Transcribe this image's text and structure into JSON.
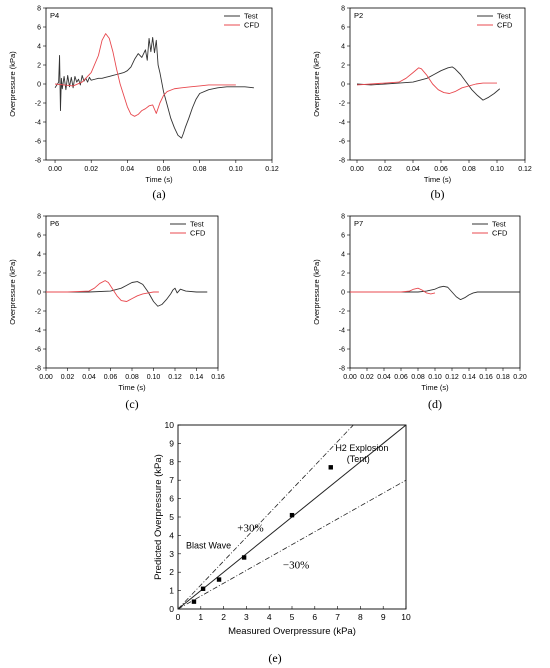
{
  "chart_data": [
    {
      "type": "line",
      "panel_label": "(a)",
      "sensor_label": "P4",
      "xlabel": "Time (s)",
      "ylabel": "Overpressure (kPa)",
      "xlim": [
        -0.005,
        0.12
      ],
      "ylim": [
        -8,
        8
      ],
      "x_ticks": [
        "0.00",
        "0.02",
        "0.04",
        "0.06",
        "0.08",
        "0.10",
        "0.12"
      ],
      "y_ticks": [
        "-8",
        "-6",
        "-4",
        "-2",
        "0",
        "2",
        "4",
        "6",
        "8"
      ],
      "legend": "top-right",
      "series": [
        {
          "name": "Test",
          "color": "#333333",
          "x": [
            0.0,
            0.002,
            0.0025,
            0.003,
            0.0035,
            0.004,
            0.005,
            0.006,
            0.007,
            0.008,
            0.009,
            0.01,
            0.011,
            0.012,
            0.013,
            0.014,
            0.015,
            0.016,
            0.017,
            0.018,
            0.019,
            0.02,
            0.022,
            0.024,
            0.026,
            0.028,
            0.03,
            0.032,
            0.034,
            0.036,
            0.038,
            0.04,
            0.042,
            0.044,
            0.046,
            0.048,
            0.05,
            0.051,
            0.052,
            0.053,
            0.054,
            0.055,
            0.056,
            0.057,
            0.058,
            0.059,
            0.06,
            0.062,
            0.064,
            0.066,
            0.068,
            0.07,
            0.071,
            0.072,
            0.074,
            0.076,
            0.078,
            0.08,
            0.085,
            0.09,
            0.095,
            0.1,
            0.105,
            0.11
          ],
          "y": [
            -0.4,
            0.2,
            3.0,
            -2.8,
            0.6,
            -0.5,
            0.8,
            -0.6,
            0.9,
            -0.3,
            0.7,
            -0.4,
            0.8,
            0.2,
            0.5,
            -0.1,
            0.9,
            0.3,
            0.6,
            0.2,
            0.7,
            0.4,
            0.5,
            0.6,
            0.6,
            0.7,
            0.8,
            0.9,
            1.0,
            1.1,
            1.2,
            1.4,
            1.8,
            2.6,
            3.2,
            2.8,
            3.6,
            2.5,
            4.8,
            3.4,
            4.9,
            3.3,
            4.6,
            2.0,
            1.2,
            0.2,
            -0.8,
            -2.2,
            -3.6,
            -4.6,
            -5.4,
            -5.7,
            -5.2,
            -4.6,
            -3.6,
            -2.5,
            -1.6,
            -1.0,
            -0.6,
            -0.4,
            -0.3,
            -0.3,
            -0.3,
            -0.4
          ]
        },
        {
          "name": "CFD",
          "color": "#e8494f",
          "x": [
            0.0,
            0.005,
            0.01,
            0.015,
            0.02,
            0.024,
            0.026,
            0.028,
            0.03,
            0.032,
            0.034,
            0.036,
            0.038,
            0.04,
            0.042,
            0.044,
            0.046,
            0.048,
            0.05,
            0.052,
            0.054,
            0.056,
            0.058,
            0.06,
            0.062,
            0.066,
            0.07,
            0.075,
            0.08,
            0.085,
            0.09,
            0.095,
            0.1
          ],
          "y": [
            0.0,
            -0.1,
            -0.2,
            0.2,
            1.2,
            3.0,
            4.6,
            5.3,
            4.8,
            3.4,
            1.6,
            0.0,
            -1.2,
            -2.4,
            -3.2,
            -3.4,
            -3.2,
            -2.8,
            -2.6,
            -2.3,
            -2.2,
            -3.1,
            -2.0,
            -1.2,
            -0.8,
            -0.5,
            -0.4,
            -0.3,
            -0.2,
            -0.1,
            -0.1,
            -0.1,
            -0.1
          ]
        }
      ]
    },
    {
      "type": "line",
      "panel_label": "(b)",
      "sensor_label": "P2",
      "xlabel": "Time (s)",
      "ylabel": "Overpressure (kPa)",
      "xlim": [
        -0.005,
        0.12
      ],
      "ylim": [
        -8,
        8
      ],
      "x_ticks": [
        "0.00",
        "0.02",
        "0.04",
        "0.06",
        "0.08",
        "0.10",
        "0.12"
      ],
      "y_ticks": [
        "-8",
        "-6",
        "-4",
        "-2",
        "0",
        "2",
        "4",
        "6",
        "8"
      ],
      "legend": "top-right",
      "series": [
        {
          "name": "Test",
          "color": "#333333",
          "x": [
            0.0,
            0.01,
            0.02,
            0.03,
            0.04,
            0.05,
            0.055,
            0.06,
            0.065,
            0.068,
            0.07,
            0.074,
            0.078,
            0.082,
            0.086,
            0.09,
            0.094,
            0.098,
            0.102
          ],
          "y": [
            0.0,
            -0.1,
            0.0,
            0.1,
            0.2,
            0.6,
            1.0,
            1.4,
            1.7,
            1.8,
            1.6,
            1.0,
            0.2,
            -0.6,
            -1.2,
            -1.7,
            -1.4,
            -1.0,
            -0.5
          ]
        },
        {
          "name": "CFD",
          "color": "#e8494f",
          "x": [
            0.0,
            0.01,
            0.02,
            0.03,
            0.035,
            0.04,
            0.044,
            0.046,
            0.05,
            0.054,
            0.058,
            0.062,
            0.066,
            0.07,
            0.075,
            0.08,
            0.085,
            0.09,
            0.095,
            0.1
          ],
          "y": [
            -0.1,
            0.0,
            0.1,
            0.2,
            0.6,
            1.2,
            1.7,
            1.6,
            0.9,
            0.0,
            -0.6,
            -0.9,
            -1.0,
            -0.8,
            -0.4,
            -0.2,
            0.0,
            0.1,
            0.1,
            0.1
          ]
        }
      ]
    },
    {
      "type": "line",
      "panel_label": "(c)",
      "sensor_label": "P6",
      "xlabel": "Time (s)",
      "ylabel": "Overpressure (kPa)",
      "xlim": [
        0,
        0.16
      ],
      "ylim": [
        -8,
        8
      ],
      "x_ticks": [
        "0.00",
        "0.02",
        "0.04",
        "0.06",
        "0.08",
        "0.10",
        "0.12",
        "0.14",
        "0.16"
      ],
      "y_ticks": [
        "-8",
        "-6",
        "-4",
        "-2",
        "0",
        "2",
        "4",
        "6",
        "8"
      ],
      "legend": "top-right",
      "series": [
        {
          "name": "Test",
          "color": "#333333",
          "x": [
            0.0,
            0.02,
            0.04,
            0.06,
            0.07,
            0.075,
            0.08,
            0.085,
            0.09,
            0.095,
            0.1,
            0.104,
            0.108,
            0.112,
            0.116,
            0.118,
            0.12,
            0.122,
            0.125,
            0.13,
            0.14,
            0.15
          ],
          "y": [
            0.0,
            0.0,
            0.0,
            0.1,
            0.4,
            0.7,
            1.0,
            1.1,
            0.8,
            0.0,
            -1.0,
            -1.5,
            -1.3,
            -0.8,
            -0.2,
            0.2,
            0.4,
            -0.1,
            0.3,
            0.1,
            0.0,
            0.0
          ]
        },
        {
          "name": "CFD",
          "color": "#e8494f",
          "x": [
            0.0,
            0.02,
            0.04,
            0.045,
            0.05,
            0.055,
            0.058,
            0.062,
            0.066,
            0.07,
            0.075,
            0.08,
            0.085,
            0.09,
            0.095,
            0.1,
            0.105
          ],
          "y": [
            0.0,
            0.0,
            0.1,
            0.4,
            0.9,
            1.2,
            1.0,
            0.3,
            -0.4,
            -0.9,
            -1.0,
            -0.7,
            -0.4,
            -0.2,
            -0.1,
            0.0,
            0.0
          ]
        }
      ]
    },
    {
      "type": "line",
      "panel_label": "(d)",
      "sensor_label": "P7",
      "xlabel": "Time (s)",
      "ylabel": "Overpressure (kPa)",
      "xlim": [
        0,
        0.2
      ],
      "ylim": [
        -8,
        8
      ],
      "x_ticks": [
        "0.00",
        "0.02",
        "0.04",
        "0.06",
        "0.08",
        "0.10",
        "0.12",
        "0.14",
        "0.16",
        "0.18",
        "0.20"
      ],
      "y_ticks": [
        "-8",
        "-6",
        "-4",
        "-2",
        "0",
        "2",
        "4",
        "6",
        "8"
      ],
      "legend": "top-right",
      "series": [
        {
          "name": "Test",
          "color": "#333333",
          "x": [
            0.0,
            0.04,
            0.08,
            0.09,
            0.1,
            0.105,
            0.11,
            0.115,
            0.12,
            0.125,
            0.13,
            0.135,
            0.14,
            0.145,
            0.15,
            0.16,
            0.18,
            0.2
          ],
          "y": [
            0.0,
            0.0,
            0.0,
            0.1,
            0.3,
            0.5,
            0.6,
            0.5,
            0.0,
            -0.5,
            -0.8,
            -0.6,
            -0.3,
            -0.1,
            0.0,
            0.0,
            0.0,
            0.0
          ]
        },
        {
          "name": "CFD",
          "color": "#e8494f",
          "x": [
            0.0,
            0.04,
            0.06,
            0.07,
            0.075,
            0.08,
            0.085,
            0.09,
            0.095,
            0.1
          ],
          "y": [
            0.0,
            0.0,
            0.0,
            0.1,
            0.3,
            0.4,
            0.2,
            -0.1,
            -0.2,
            -0.1
          ]
        }
      ]
    },
    {
      "type": "scatter",
      "panel_label": "(e)",
      "xlabel": "Measured Overpressure (kPa)",
      "ylabel": "Predicted Overpressure (kPa)",
      "xlim": [
        0,
        10
      ],
      "ylim": [
        0,
        10
      ],
      "x_ticks": [
        "0",
        "1",
        "2",
        "3",
        "4",
        "5",
        "6",
        "7",
        "8",
        "9",
        "10"
      ],
      "y_ticks": [
        "0",
        "1",
        "2",
        "3",
        "4",
        "5",
        "6",
        "7",
        "8",
        "9",
        "10"
      ],
      "points": {
        "x": [
          0.7,
          1.1,
          1.8,
          2.9,
          5.0,
          6.7
        ],
        "y": [
          0.4,
          1.1,
          1.6,
          2.8,
          5.1,
          7.7
        ]
      },
      "reference_lines": [
        {
          "label": "+30%",
          "slope": 1.3,
          "style": "dashdot"
        },
        {
          "label": "",
          "slope": 1.0,
          "style": "solid"
        },
        {
          "label": "−30%",
          "slope": 0.7,
          "style": "dashdot"
        }
      ],
      "annotations": [
        "Blast Wave",
        "H2 Explosion",
        "(Tent)"
      ]
    }
  ]
}
